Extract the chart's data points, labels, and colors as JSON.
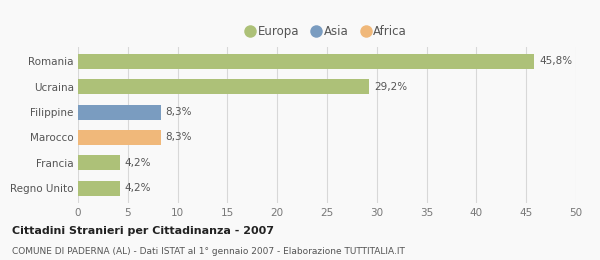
{
  "categories": [
    "Regno Unito",
    "Francia",
    "Marocco",
    "Filippine",
    "Ucraina",
    "Romania"
  ],
  "values": [
    4.2,
    4.2,
    8.3,
    8.3,
    29.2,
    45.8
  ],
  "colors": [
    "#adc178",
    "#adc178",
    "#f0b87a",
    "#7a9cc0",
    "#adc178",
    "#adc178"
  ],
  "labels": [
    "4,2%",
    "4,2%",
    "8,3%",
    "8,3%",
    "29,2%",
    "45,8%"
  ],
  "legend_items": [
    {
      "label": "Europa",
      "color": "#adc178"
    },
    {
      "label": "Asia",
      "color": "#7a9cc0"
    },
    {
      "label": "Africa",
      "color": "#f0b87a"
    }
  ],
  "xlim": [
    0,
    50
  ],
  "xticks": [
    0,
    5,
    10,
    15,
    20,
    25,
    30,
    35,
    40,
    45,
    50
  ],
  "title": "Cittadini Stranieri per Cittadinanza - 2007",
  "subtitle": "COMUNE DI PADERNA (AL) - Dati ISTAT al 1° gennaio 2007 - Elaborazione TUTTITALIA.IT",
  "bg_color": "#f9f9f9",
  "grid_color": "#d8d8d8",
  "bar_height": 0.6
}
